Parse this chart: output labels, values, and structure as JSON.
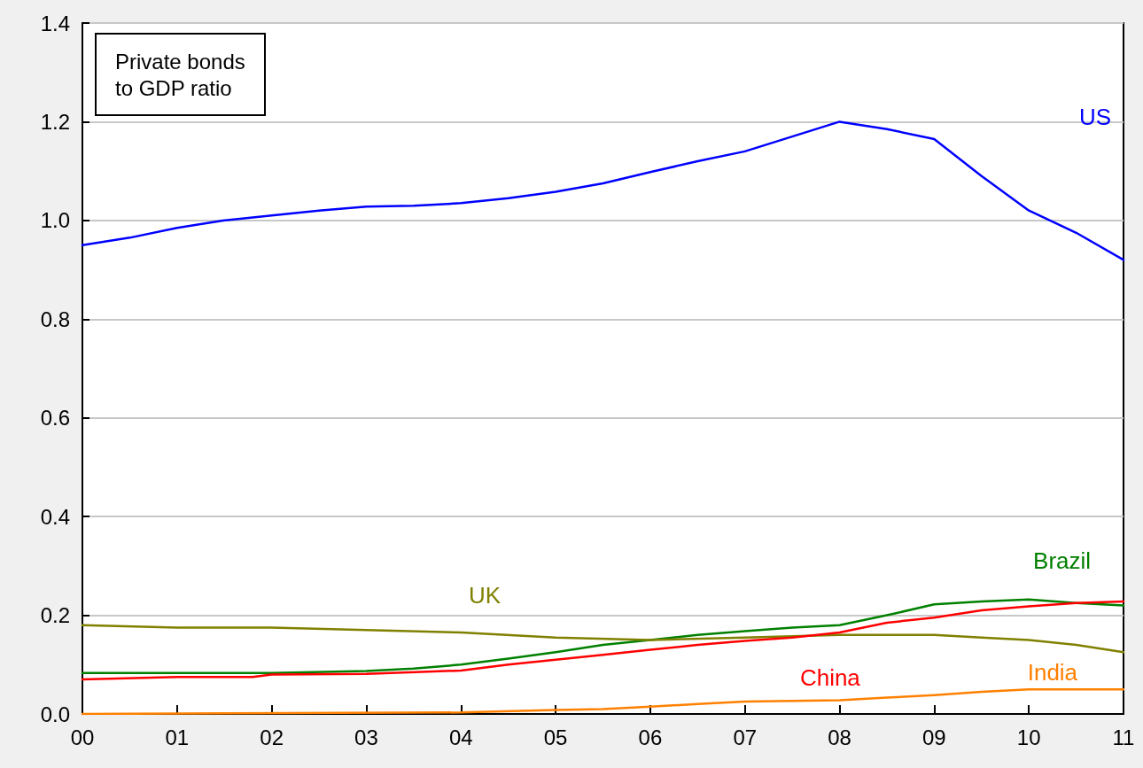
{
  "chart_data": {
    "type": "line",
    "title": "Private bonds\nto GDP ratio",
    "xlim": [
      2000,
      2011
    ],
    "xticks": [
      {
        "value": 2000,
        "label": "00"
      },
      {
        "value": 2001,
        "label": "01"
      },
      {
        "value": 2002,
        "label": "02"
      },
      {
        "value": 2003,
        "label": "03"
      },
      {
        "value": 2004,
        "label": "04"
      },
      {
        "value": 2005,
        "label": "05"
      },
      {
        "value": 2006,
        "label": "06"
      },
      {
        "value": 2007,
        "label": "07"
      },
      {
        "value": 2008,
        "label": "08"
      },
      {
        "value": 2009,
        "label": "09"
      },
      {
        "value": 2010,
        "label": "10"
      },
      {
        "value": 2011,
        "label": "11"
      }
    ],
    "ylim": [
      0,
      1.4
    ],
    "yticks": [
      {
        "value": 0,
        "label": "0.0"
      },
      0.2,
      0.4,
      0.6,
      0.8,
      {
        "value": 1,
        "label": "1.0"
      },
      1.2,
      1.4
    ],
    "grid": "y",
    "legend": false,
    "marker": "none",
    "line_style": "solid",
    "series": [
      {
        "name": "US",
        "color": "#0000ff",
        "x": [
          2000,
          2000.5,
          2001,
          2001.5,
          2002,
          2002.5,
          2003,
          2003.5,
          2004,
          2004.5,
          2005,
          2005.5,
          2006,
          2006.5,
          2007,
          2007.5,
          2008,
          2008.5,
          2009,
          2009.5,
          2010,
          2010.5,
          2011
        ],
        "values": [
          0.95,
          0.965,
          0.985,
          1.0,
          1.01,
          1.02,
          1.028,
          1.03,
          1.035,
          1.045,
          1.058,
          1.075,
          1.098,
          1.12,
          1.14,
          1.17,
          1.2,
          1.185,
          1.165,
          1.09,
          1.02,
          0.975,
          0.92
        ]
      },
      {
        "name": "Brazil",
        "color": "#008000",
        "x": [
          2000,
          2001,
          2002,
          2003,
          2003.5,
          2004,
          2004.5,
          2005,
          2005.5,
          2006,
          2006.5,
          2007,
          2007.5,
          2008,
          2008.5,
          2009,
          2009.5,
          2010,
          2010.5,
          2011
        ],
        "values": [
          0.083,
          0.083,
          0.083,
          0.087,
          0.092,
          0.1,
          0.112,
          0.125,
          0.14,
          0.15,
          0.16,
          0.168,
          0.175,
          0.18,
          0.2,
          0.222,
          0.228,
          0.232,
          0.225,
          0.22
        ]
      },
      {
        "name": "UK",
        "color": "#808000",
        "x": [
          2000,
          2001,
          2002,
          2003,
          2004,
          2005,
          2006,
          2007,
          2008,
          2009,
          2009.5,
          2010,
          2010.5,
          2011
        ],
        "values": [
          0.18,
          0.175,
          0.175,
          0.17,
          0.165,
          0.155,
          0.15,
          0.155,
          0.16,
          0.16,
          0.155,
          0.15,
          0.14,
          0.125
        ]
      },
      {
        "name": "China",
        "color": "#ff0000",
        "x": [
          2000,
          2001,
          2001.8,
          2002,
          2003,
          2004,
          2004.5,
          2005,
          2005.5,
          2006,
          2006.5,
          2007,
          2007.5,
          2008,
          2008.5,
          2009,
          2009.5,
          2010,
          2010.5,
          2011
        ],
        "values": [
          0.07,
          0.075,
          0.075,
          0.08,
          0.081,
          0.088,
          0.1,
          0.11,
          0.12,
          0.13,
          0.14,
          0.148,
          0.155,
          0.165,
          0.185,
          0.195,
          0.21,
          0.218,
          0.225,
          0.228
        ]
      },
      {
        "name": "India",
        "color": "#ff8000",
        "x": [
          2000,
          2004,
          2005,
          2005.5,
          2006,
          2006.5,
          2007,
          2008,
          2008.5,
          2009,
          2009.5,
          2010,
          2011
        ],
        "values": [
          0,
          0.003,
          0.008,
          0.01,
          0.015,
          0.02,
          0.025,
          0.028,
          0.033,
          0.038,
          0.045,
          0.05,
          0.05
        ]
      }
    ]
  }
}
